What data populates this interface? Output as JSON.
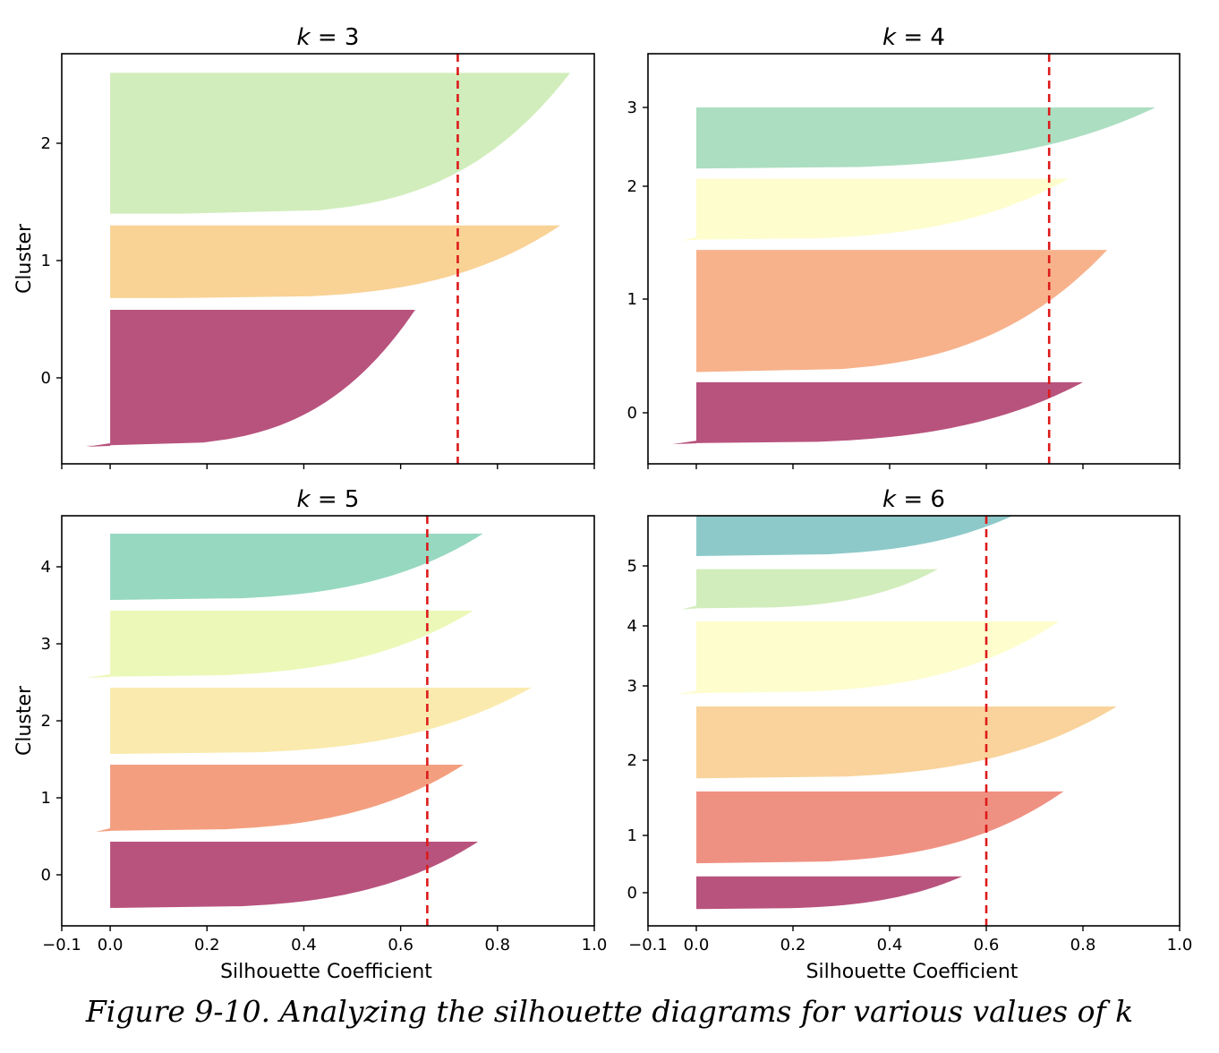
{
  "caption": "Figure 9-10. Analyzing the silhouette diagrams for various values of k",
  "shared_x_ticks": [
    "−0.1",
    "0.0",
    "0.2",
    "0.4",
    "0.6",
    "0.8",
    "1.0"
  ],
  "chart_data": [
    {
      "type": "area",
      "title_var": "k",
      "title_value": "3",
      "xlabel": "",
      "ylabel": "Cluster",
      "xlim": [
        -0.1,
        1.0
      ],
      "ylim": [
        -0.7,
        2.75
      ],
      "show_x_tick_labels": false,
      "y_ticks": [
        "0",
        "1",
        "2"
      ],
      "average_silhouette": 0.718,
      "clusters": [
        {
          "label": "0",
          "color": "#b44a76",
          "y_from": -0.58,
          "y_to": 0.58,
          "min_coefficient": -0.05,
          "max_coefficient": 0.63
        },
        {
          "label": "1",
          "color": "#f9d08f",
          "y_from": 0.68,
          "y_to": 1.3,
          "min_coefficient": 0.13,
          "max_coefficient": 0.93
        },
        {
          "label": "2",
          "color": "#cfecb7",
          "y_from": 1.4,
          "y_to": 2.6,
          "min_coefficient": 0.15,
          "max_coefficient": 0.95
        }
      ]
    },
    {
      "type": "area",
      "title_var": "k",
      "title_value": "4",
      "xlabel": "",
      "ylabel": "",
      "xlim": [
        -0.1,
        1.0
      ],
      "ylim": [
        -0.45,
        3.4
      ],
      "show_x_tick_labels": false,
      "y_ticks": [
        "0",
        "1",
        "2",
        "3"
      ],
      "average_silhouette": 0.73,
      "clusters": [
        {
          "label": "0",
          "color": "#b44a76",
          "y_from": -0.3,
          "y_to": 0.3,
          "min_coefficient": -0.05,
          "max_coefficient": 0.8
        },
        {
          "label": "1",
          "color": "#f7ae86",
          "y_from": 0.4,
          "y_to": 1.6,
          "min_coefficient": 0.0,
          "max_coefficient": 0.85
        },
        {
          "label": "2",
          "color": "#fdfdcb",
          "y_from": 1.7,
          "y_to": 2.3,
          "min_coefficient": -0.03,
          "max_coefficient": 0.77
        },
        {
          "label": "3",
          "color": "#a8dcbe",
          "y_from": 2.4,
          "y_to": 3.0,
          "min_coefficient": 0.0,
          "max_coefficient": 0.95
        }
      ]
    },
    {
      "type": "area",
      "title_var": "k",
      "title_value": "5",
      "xlabel": "Silhouette Coefficient",
      "ylabel": "Cluster",
      "xlim": [
        -0.1,
        1.0
      ],
      "ylim": [
        -0.7,
        4.65
      ],
      "show_x_tick_labels": true,
      "y_ticks": [
        "0",
        "1",
        "2",
        "3",
        "4"
      ],
      "average_silhouette": 0.655,
      "clusters": [
        {
          "label": "0",
          "color": "#b44a76",
          "y_from": -0.43,
          "y_to": 0.43,
          "min_coefficient": 0.0,
          "max_coefficient": 0.76
        },
        {
          "label": "1",
          "color": "#f29a78",
          "y_from": 0.57,
          "y_to": 1.43,
          "min_coefficient": -0.03,
          "max_coefficient": 0.73
        },
        {
          "label": "2",
          "color": "#fae9a9",
          "y_from": 1.57,
          "y_to": 2.43,
          "min_coefficient": 0.0,
          "max_coefficient": 0.87
        },
        {
          "label": "3",
          "color": "#ebf8b4",
          "y_from": 2.57,
          "y_to": 3.43,
          "min_coefficient": -0.05,
          "max_coefficient": 0.75
        },
        {
          "label": "4",
          "color": "#91d6bd",
          "y_from": 3.57,
          "y_to": 4.43,
          "min_coefficient": 0.0,
          "max_coefficient": 0.77
        }
      ]
    },
    {
      "type": "area",
      "title_var": "k",
      "title_value": "6",
      "xlabel": "Silhouette Coefficient",
      "ylabel": "",
      "xlim": [
        -0.1,
        1.0
      ],
      "ylim": [
        -0.5,
        5.6
      ],
      "show_x_tick_labels": true,
      "y_ticks": [
        "0",
        "1",
        "2",
        "3",
        "4",
        "5"
      ],
      "average_silhouette": 0.6,
      "clusters": [
        {
          "label": "0",
          "color": "#b44a76",
          "y_from": -0.25,
          "y_to": 0.25,
          "min_coefficient": 0.0,
          "max_coefficient": 0.55
        },
        {
          "label": "1",
          "color": "#ee8b7b",
          "y_from": 0.45,
          "y_to": 1.55,
          "min_coefficient": 0.0,
          "max_coefficient": 0.76
        },
        {
          "label": "2",
          "color": "#f9d196",
          "y_from": 1.75,
          "y_to": 2.85,
          "min_coefficient": 0.0,
          "max_coefficient": 0.87
        },
        {
          "label": "3",
          "color": "#fdfdcb",
          "y_from": 3.05,
          "y_to": 4.15,
          "min_coefficient": -0.04,
          "max_coefficient": 0.75
        },
        {
          "label": "4",
          "color": "#d0ecb8",
          "y_from": 4.35,
          "y_to": 4.95,
          "min_coefficient": -0.03,
          "max_coefficient": 0.5
        },
        {
          "label": "5",
          "color": "#88c6c6",
          "y_from": 5.15,
          "y_to": 6.25,
          "min_coefficient": 0.0,
          "max_coefficient": 0.77
        }
      ]
    }
  ]
}
